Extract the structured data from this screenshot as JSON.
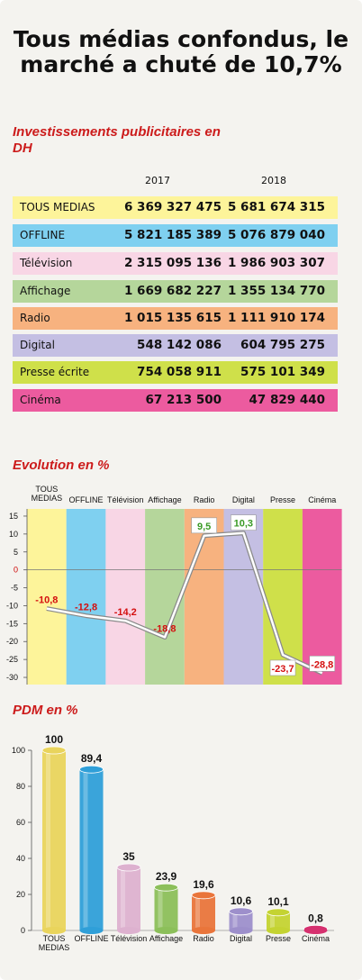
{
  "title": "Tous médias confondus, le marché a chuté de 10,7%",
  "section_titles": {
    "invest": "Investissements publicitaires en DH",
    "evolution": "Evolution en %",
    "pdm": "PDM en %"
  },
  "table": {
    "year1": "2017",
    "year2": "2018",
    "rows": [
      {
        "label": "TOUS MEDIAS",
        "v2017": "6 369 327 475",
        "v2018": "5 681 674 315",
        "color": "#fdf49a"
      },
      {
        "label": "OFFLINE",
        "v2017": "5 821 185 389",
        "v2018": "5 076 879 040",
        "color": "#7fd0f0"
      },
      {
        "label": "Télévision",
        "v2017": "2 315 095 136",
        "v2018": "1 986 903 307",
        "color": "#f8d6e5"
      },
      {
        "label": "Affichage",
        "v2017": "1 669 682 227",
        "v2018": "1 355 134 770",
        "color": "#b5d69b"
      },
      {
        "label": "Radio",
        "v2017": "1 015 135 615",
        "v2018": "1 111 910 174",
        "color": "#f7b27f"
      },
      {
        "label": "Digital",
        "v2017": "548 142 086",
        "v2018": "604 795 275",
        "color": "#c4bfe3"
      },
      {
        "label": "Presse écrite",
        "v2017": "754 058 911",
        "v2018": "575 101 349",
        "color": "#cfe04a"
      },
      {
        "label": "Cinéma",
        "v2017": "67 213 500",
        "v2018": "47 829 440",
        "color": "#ec5b9f"
      }
    ]
  },
  "chart_data": [
    {
      "type": "line",
      "categories": [
        "TOUS MEDIAS",
        "OFFLINE",
        "Télévision",
        "Affichage",
        "Radio",
        "Digital",
        "Presse",
        "Cinéma"
      ],
      "category_label_lines": [
        [
          "TOUS",
          "MEDIAS"
        ],
        [
          "OFFLINE"
        ],
        [
          "Télévision"
        ],
        [
          "Affichage"
        ],
        [
          "Radio"
        ],
        [
          "Digital"
        ],
        [
          "Presse"
        ],
        [
          "Cinéma"
        ]
      ],
      "values": [
        -10.8,
        -12.8,
        -14.2,
        -18.8,
        9.5,
        10.3,
        -23.7,
        -28.8
      ],
      "value_labels": [
        "-10,8",
        "-12,8",
        "-14,2",
        "-18,8",
        "9,5",
        "10,3",
        "-23,7",
        "-28,8"
      ],
      "yticks": [
        15,
        10,
        5,
        0,
        -5,
        -10,
        -15,
        -20,
        -25,
        -30
      ],
      "ylim": [
        -32,
        17
      ],
      "column_colors": [
        "#fdf49a",
        "#7fd0f0",
        "#f8d6e5",
        "#b5d69b",
        "#f7b27f",
        "#c4bfe3",
        "#cfe04a",
        "#ec5b9f"
      ],
      "negative_color": "#d40f0f",
      "positive_color": "#3a9a25"
    },
    {
      "type": "bar",
      "categories": [
        "TOUS MEDIAS",
        "OFFLINE",
        "Télévision",
        "Affichage",
        "Radio",
        "Digital",
        "Presse",
        "Cinéma"
      ],
      "category_label_lines": [
        [
          "TOUS",
          "MEDIAS"
        ],
        [
          "OFFLINE"
        ],
        [
          "Télévision"
        ],
        [
          "Affichage"
        ],
        [
          "Radio"
        ],
        [
          "Digital"
        ],
        [
          "Presse"
        ],
        [
          "Cinéma"
        ]
      ],
      "values": [
        100,
        89.4,
        35,
        23.9,
        19.6,
        10.6,
        10.1,
        0.8
      ],
      "value_labels": [
        "100",
        "89,4",
        "35",
        "23,9",
        "19,6",
        "10,6",
        "10,1",
        "0,8"
      ],
      "yticks": [
        100,
        80,
        60,
        40,
        20,
        0
      ],
      "ylim": [
        0,
        100
      ],
      "bar_colors": [
        "#e9d45c",
        "#2f9fd8",
        "#ddb1cf",
        "#8cbf5a",
        "#e9753b",
        "#9d8fcb",
        "#c4d332",
        "#d6316f"
      ]
    }
  ]
}
